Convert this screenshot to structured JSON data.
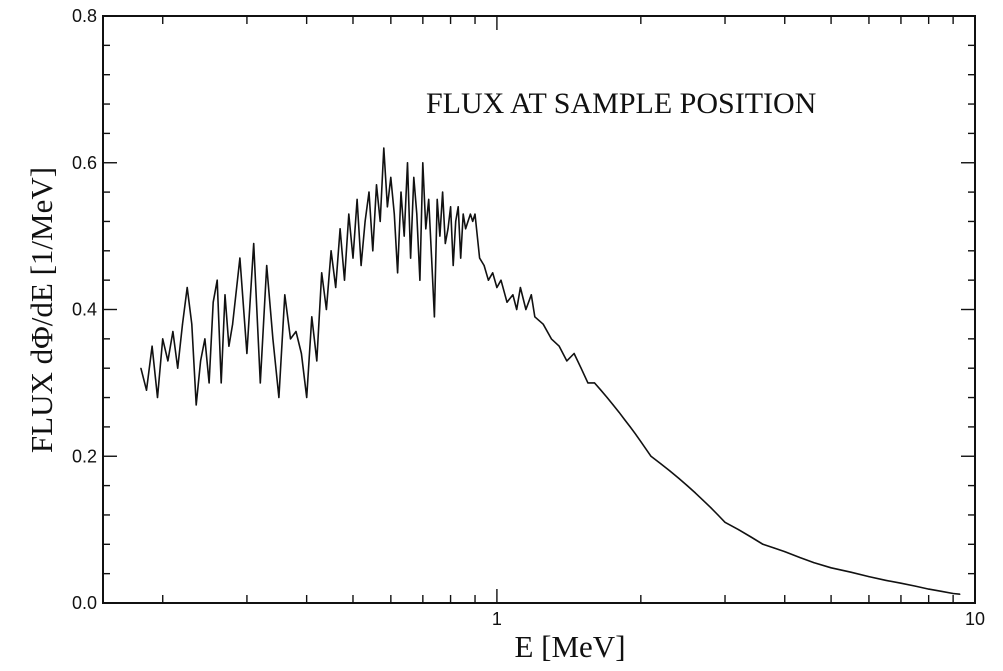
{
  "chart_data": {
    "type": "line",
    "title": "",
    "annotation": "FLUX AT SAMPLE POSITION",
    "xlabel": "E [MeV]",
    "ylabel": "FLUX dΦ/dE [1/MeV]",
    "xscale": "log",
    "xlim": [
      0.15,
      10
    ],
    "ylim": [
      0.0,
      0.8
    ],
    "grid": false,
    "legend": "none",
    "x_tick_labels": [
      {
        "value": 1,
        "label": "1"
      },
      {
        "value": 10,
        "label": "10"
      }
    ],
    "y_tick_labels": [
      {
        "value": 0.0,
        "label": "0.0"
      },
      {
        "value": 0.2,
        "label": "0.2"
      },
      {
        "value": 0.4,
        "label": "0.4"
      },
      {
        "value": 0.6,
        "label": "0.6"
      },
      {
        "value": 0.8,
        "label": "0.8"
      }
    ],
    "series": [
      {
        "color": "#111111",
        "x": [
          0.18,
          0.185,
          0.19,
          0.195,
          0.2,
          0.205,
          0.21,
          0.215,
          0.22,
          0.225,
          0.23,
          0.235,
          0.24,
          0.245,
          0.25,
          0.255,
          0.26,
          0.265,
          0.27,
          0.275,
          0.28,
          0.29,
          0.3,
          0.31,
          0.32,
          0.33,
          0.34,
          0.35,
          0.36,
          0.37,
          0.38,
          0.39,
          0.4,
          0.41,
          0.42,
          0.43,
          0.44,
          0.45,
          0.46,
          0.47,
          0.48,
          0.49,
          0.5,
          0.51,
          0.52,
          0.53,
          0.54,
          0.55,
          0.56,
          0.57,
          0.58,
          0.59,
          0.6,
          0.61,
          0.62,
          0.63,
          0.64,
          0.65,
          0.66,
          0.67,
          0.68,
          0.69,
          0.7,
          0.71,
          0.72,
          0.73,
          0.74,
          0.75,
          0.76,
          0.77,
          0.78,
          0.79,
          0.8,
          0.81,
          0.82,
          0.83,
          0.84,
          0.85,
          0.86,
          0.87,
          0.88,
          0.89,
          0.9,
          0.92,
          0.94,
          0.96,
          0.98,
          1.0,
          1.02,
          1.05,
          1.08,
          1.1,
          1.12,
          1.15,
          1.18,
          1.2,
          1.25,
          1.3,
          1.35,
          1.4,
          1.45,
          1.5,
          1.55,
          1.6,
          1.65,
          1.7,
          1.75,
          1.8,
          1.85,
          1.9,
          1.95,
          2.0,
          2.1,
          2.2,
          2.3,
          2.4,
          2.5,
          2.6,
          2.7,
          2.8,
          2.9,
          3.0,
          3.2,
          3.4,
          3.6,
          3.8,
          4.0,
          4.3,
          4.6,
          5.0,
          5.5,
          6.0,
          6.5,
          7.0,
          7.5,
          8.0,
          8.5,
          9.0,
          9.3
        ],
        "y": [
          0.32,
          0.29,
          0.35,
          0.28,
          0.36,
          0.33,
          0.37,
          0.32,
          0.38,
          0.43,
          0.38,
          0.27,
          0.33,
          0.36,
          0.3,
          0.41,
          0.44,
          0.3,
          0.42,
          0.35,
          0.38,
          0.47,
          0.34,
          0.49,
          0.3,
          0.46,
          0.36,
          0.28,
          0.42,
          0.36,
          0.37,
          0.34,
          0.28,
          0.39,
          0.33,
          0.45,
          0.4,
          0.48,
          0.43,
          0.51,
          0.44,
          0.53,
          0.47,
          0.55,
          0.46,
          0.52,
          0.56,
          0.48,
          0.57,
          0.52,
          0.62,
          0.54,
          0.58,
          0.53,
          0.45,
          0.56,
          0.5,
          0.6,
          0.47,
          0.58,
          0.53,
          0.44,
          0.6,
          0.51,
          0.55,
          0.47,
          0.39,
          0.55,
          0.5,
          0.56,
          0.49,
          0.51,
          0.54,
          0.46,
          0.52,
          0.54,
          0.47,
          0.53,
          0.51,
          0.52,
          0.53,
          0.52,
          0.53,
          0.47,
          0.46,
          0.44,
          0.45,
          0.43,
          0.44,
          0.41,
          0.42,
          0.4,
          0.43,
          0.4,
          0.42,
          0.39,
          0.38,
          0.36,
          0.35,
          0.33,
          0.34,
          0.32,
          0.3,
          0.3,
          0.29,
          0.28,
          0.27,
          0.26,
          0.25,
          0.24,
          0.23,
          0.22,
          0.2,
          0.19,
          0.18,
          0.17,
          0.16,
          0.15,
          0.14,
          0.13,
          0.12,
          0.11,
          0.1,
          0.09,
          0.08,
          0.075,
          0.07,
          0.062,
          0.055,
          0.048,
          0.042,
          0.036,
          0.031,
          0.027,
          0.023,
          0.019,
          0.016,
          0.013,
          0.012
        ]
      }
    ]
  }
}
